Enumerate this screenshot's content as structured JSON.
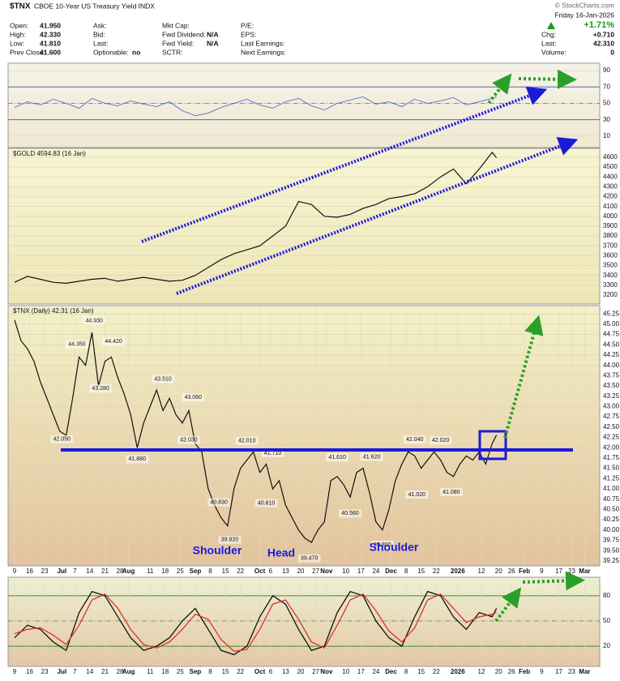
{
  "header": {
    "symbol": "$TNX",
    "name": "CBOE 10-Year US Treasury Yield INDX",
    "credit": "© StockCharts.com",
    "date": "Friday 16-Jan-2026",
    "change": "+1.71%",
    "columns": [
      [
        {
          "label": "Open:",
          "value": "41.950"
        },
        {
          "label": "High:",
          "value": "42.330"
        },
        {
          "label": "Low:",
          "value": "41.810"
        },
        {
          "label": "Prev Close:",
          "value": "41.600"
        }
      ],
      [
        {
          "label": "Ask:"
        },
        {
          "label": "Bid:"
        },
        {
          "label": "Last:"
        },
        {
          "label": "Optionable:",
          "value": "no"
        }
      ],
      [
        {
          "label": "Mkt Cap:"
        },
        {
          "label": "Fwd Dividend:",
          "value": "N/A"
        },
        {
          "label": "Fwd Yield:",
          "value": "N/A"
        },
        {
          "label": "SCTR:"
        }
      ],
      [
        {
          "label": "P/E:"
        },
        {
          "label": "EPS:"
        },
        {
          "label": "Last Earnings:"
        },
        {
          "label": "Next Earnings:"
        }
      ]
    ],
    "right": [
      {
        "label": "Chg:",
        "value": "+0.710"
      },
      {
        "label": "Last:",
        "value": "42.310"
      },
      {
        "label": "Volume:",
        "value": "0"
      }
    ]
  },
  "pattern_labels": [
    "Shoulder",
    "Head",
    "Shoulder"
  ],
  "chart_data": [
    {
      "type": "line",
      "color": "#3a5fcd",
      "ylim": [
        -4,
        99
      ],
      "yticks": [
        10,
        30,
        50,
        70,
        90
      ],
      "xlim": [
        -3,
        272
      ],
      "x": [
        0,
        6,
        12,
        18,
        24,
        30,
        36,
        42,
        48,
        54,
        60,
        66,
        72,
        78,
        84,
        90,
        96,
        102,
        108,
        114,
        120,
        126,
        132,
        138,
        144,
        150,
        156,
        162,
        168,
        174,
        180,
        186,
        192,
        198,
        204,
        210,
        216,
        222,
        224
      ],
      "values": [
        45,
        52,
        48,
        55,
        50,
        44,
        56,
        50,
        47,
        53,
        49,
        46,
        52,
        41,
        35,
        38,
        45,
        50,
        55,
        48,
        44,
        52,
        56,
        47,
        42,
        50,
        54,
        58,
        49,
        52,
        46,
        55,
        50,
        53,
        57,
        48,
        52,
        56,
        58
      ]
    },
    {
      "type": "line",
      "title": "$GOLD 4594.83 (16 Jan)",
      "color": "#111111",
      "ylim": [
        3109,
        4690
      ],
      "xlim": [
        -3,
        272
      ],
      "yticks": [
        3200,
        3300,
        3400,
        3500,
        3600,
        3700,
        3800,
        3900,
        4000,
        4100,
        4200,
        4300,
        4400,
        4500,
        4600
      ],
      "x": [
        0,
        6,
        12,
        18,
        24,
        30,
        36,
        42,
        48,
        54,
        60,
        66,
        72,
        78,
        84,
        90,
        96,
        102,
        108,
        114,
        120,
        126,
        132,
        138,
        144,
        150,
        156,
        162,
        168,
        174,
        180,
        186,
        192,
        198,
        204,
        210,
        216,
        222,
        224
      ],
      "values": [
        3330,
        3390,
        3360,
        3330,
        3320,
        3340,
        3360,
        3370,
        3340,
        3360,
        3380,
        3360,
        3340,
        3350,
        3400,
        3480,
        3560,
        3620,
        3660,
        3700,
        3800,
        3900,
        4150,
        4120,
        4000,
        3990,
        4020,
        4080,
        4120,
        4180,
        4200,
        4230,
        4300,
        4400,
        4480,
        4330,
        4480,
        4650,
        4594.83
      ]
    },
    {
      "type": "line",
      "title": "$TNX (Daily) 42.31 (16 Jan)",
      "color": "#111111",
      "ylim": [
        39.13,
        45.45
      ],
      "xlim": [
        -3,
        272
      ],
      "yticks": [
        39.25,
        {
          "value": 39.5,
          "label": "39.50"
        },
        39.75,
        {
          "value": 40,
          "label": "40.00"
        },
        40.25,
        {
          "value": 40.5,
          "label": "40.50"
        },
        40.75,
        {
          "value": 41,
          "label": "41.00"
        },
        41.25,
        {
          "value": 41.5,
          "label": "41.50"
        },
        41.75,
        {
          "value": 42,
          "label": "42.00"
        },
        42.25,
        {
          "value": 42.5,
          "label": "42.50"
        },
        42.75,
        {
          "value": 43,
          "label": "43.00"
        },
        43.25,
        {
          "value": 43.5,
          "label": "43.50"
        },
        43.75,
        {
          "value": 44,
          "label": "44.00"
        },
        44.25,
        {
          "value": 44.5,
          "label": "44.50"
        },
        44.75,
        {
          "value": 45,
          "label": "45.00"
        },
        45.25
      ],
      "xticks": [
        {
          "value": 0,
          "label": "9"
        },
        {
          "value": 7,
          "label": "16"
        },
        {
          "value": 14,
          "label": "23"
        },
        {
          "value": 22,
          "label": "Jul"
        },
        {
          "value": 28,
          "label": "7"
        },
        {
          "value": 35,
          "label": "14"
        },
        {
          "value": 42,
          "label": "21"
        },
        {
          "value": 49,
          "label": "28"
        },
        {
          "value": 53,
          "label": "Aug"
        },
        {
          "value": 63,
          "label": "11"
        },
        {
          "value": 70,
          "label": "18"
        },
        {
          "value": 77,
          "label": "25"
        },
        {
          "value": 84,
          "label": "Sep"
        },
        {
          "value": 91,
          "label": "8"
        },
        {
          "value": 98,
          "label": "15"
        },
        {
          "value": 105,
          "label": "22"
        },
        {
          "value": 114,
          "label": "Oct"
        },
        {
          "value": 119,
          "label": "6"
        },
        {
          "value": 126,
          "label": "13"
        },
        {
          "value": 133,
          "label": "20"
        },
        {
          "value": 140,
          "label": "27"
        },
        {
          "value": 145,
          "label": "Nov"
        },
        {
          "value": 154,
          "label": "10"
        },
        {
          "value": 161,
          "label": "17"
        },
        {
          "value": 168,
          "label": "24"
        },
        {
          "value": 175,
          "label": "Dec"
        },
        {
          "value": 182,
          "label": "8"
        },
        {
          "value": 189,
          "label": "15"
        },
        {
          "value": 196,
          "label": "22"
        },
        {
          "value": 206,
          "label": "2026"
        },
        {
          "value": 217,
          "label": "12"
        },
        {
          "value": 225,
          "label": "20"
        },
        {
          "value": 231,
          "label": "26"
        },
        {
          "value": 237,
          "label": "Feb"
        },
        {
          "value": 245,
          "label": "9"
        },
        {
          "value": 253,
          "label": "17"
        },
        {
          "value": 259,
          "label": "23"
        },
        {
          "value": 265,
          "label": "Mar"
        }
      ],
      "x": [
        0,
        3,
        6,
        9,
        12,
        15,
        18,
        21,
        24,
        27,
        30,
        33,
        36,
        39,
        42,
        45,
        48,
        51,
        54,
        57,
        60,
        63,
        66,
        69,
        72,
        75,
        78,
        81,
        84,
        87,
        90,
        93,
        96,
        99,
        102,
        105,
        108,
        111,
        114,
        117,
        120,
        123,
        126,
        129,
        132,
        135,
        138,
        141,
        144,
        147,
        150,
        153,
        156,
        159,
        162,
        165,
        168,
        171,
        174,
        177,
        180,
        183,
        186,
        189,
        192,
        195,
        198,
        201,
        204,
        207,
        210,
        213,
        216,
        219,
        222,
        224
      ],
      "values": [
        45.1,
        44.6,
        44.4,
        44.1,
        43.6,
        43.2,
        42.8,
        42.4,
        42.3,
        43.2,
        44.2,
        44.0,
        44.8,
        43.5,
        44.1,
        44.2,
        43.7,
        43.3,
        42.8,
        42.0,
        42.6,
        43.0,
        43.4,
        42.9,
        43.2,
        42.8,
        42.6,
        42.9,
        42.1,
        41.9,
        41.0,
        40.6,
        40.3,
        40.1,
        41.0,
        41.5,
        41.7,
        41.9,
        41.4,
        41.6,
        41.0,
        41.2,
        40.6,
        40.3,
        40.0,
        39.8,
        39.7,
        40.0,
        40.2,
        41.2,
        41.3,
        41.1,
        40.8,
        41.4,
        41.5,
        40.9,
        40.2,
        40.0,
        40.5,
        41.2,
        41.6,
        41.9,
        41.8,
        41.5,
        41.7,
        41.9,
        41.7,
        41.4,
        41.3,
        41.6,
        41.8,
        41.7,
        41.9,
        41.6,
        42.1,
        42.31
      ],
      "annotations": [
        {
          "x": 22,
          "value": 42.05,
          "label": "42.050"
        },
        {
          "x": 29,
          "value": 44.35,
          "label": "44.350"
        },
        {
          "x": 37,
          "value": 44.93,
          "label": "44.930"
        },
        {
          "x": 40,
          "value": 43.28,
          "label": "43.280"
        },
        {
          "x": 46,
          "value": 44.42,
          "label": "44.420"
        },
        {
          "x": 57,
          "value": 41.88,
          "label": "41.880"
        },
        {
          "x": 69,
          "value": 43.51,
          "label": "43.510"
        },
        {
          "x": 83,
          "value": 43.06,
          "label": "43.060"
        },
        {
          "x": 81,
          "value": 42.03,
          "label": "42.030"
        },
        {
          "x": 95,
          "value": 40.83,
          "label": "40.830"
        },
        {
          "x": 100,
          "value": 39.92,
          "label": "39.920"
        },
        {
          "x": 108,
          "value": 42.01,
          "label": "42.010"
        },
        {
          "x": 120,
          "value": 41.71,
          "label": "41.710"
        },
        {
          "x": 117,
          "value": 40.81,
          "label": "40.810"
        },
        {
          "x": 137,
          "value": 39.47,
          "label": "39.470"
        },
        {
          "x": 150,
          "value": 41.61,
          "label": "41.610"
        },
        {
          "x": 156,
          "value": 40.56,
          "label": "40.560"
        },
        {
          "x": 166,
          "value": 41.62,
          "label": "41.620"
        },
        {
          "x": 171,
          "value": 39.8,
          "label": "39.800"
        },
        {
          "x": 186,
          "value": 42.04,
          "label": "42.040"
        },
        {
          "x": 187,
          "value": 41.02,
          "label": "41.020"
        },
        {
          "x": 198,
          "value": 42.02,
          "label": "42.020"
        },
        {
          "x": 203,
          "value": 41.08,
          "label": "41.080"
        }
      ]
    },
    {
      "type": "line",
      "ylim": [
        -4,
        102
      ],
      "yticks": [
        20,
        50,
        80
      ],
      "xlim": [
        -3,
        272
      ],
      "xticks": [
        {
          "value": 0,
          "label": "9"
        },
        {
          "value": 7,
          "label": "16"
        },
        {
          "value": 14,
          "label": "23"
        },
        {
          "value": 22,
          "label": "Jul"
        },
        {
          "value": 28,
          "label": "7"
        },
        {
          "value": 35,
          "label": "14"
        },
        {
          "value": 42,
          "label": "21"
        },
        {
          "value": 49,
          "label": "28"
        },
        {
          "value": 53,
          "label": "Aug"
        },
        {
          "value": 63,
          "label": "11"
        },
        {
          "value": 70,
          "label": "18"
        },
        {
          "value": 77,
          "label": "25"
        },
        {
          "value": 84,
          "label": "Sep"
        },
        {
          "value": 91,
          "label": "8"
        },
        {
          "value": 98,
          "label": "15"
        },
        {
          "value": 105,
          "label": "22"
        },
        {
          "value": 114,
          "label": "Oct"
        },
        {
          "value": 119,
          "label": "6"
        },
        {
          "value": 126,
          "label": "13"
        },
        {
          "value": 133,
          "label": "20"
        },
        {
          "value": 140,
          "label": "27"
        },
        {
          "value": 145,
          "label": "Nov"
        },
        {
          "value": 154,
          "label": "10"
        },
        {
          "value": 161,
          "label": "17"
        },
        {
          "value": 168,
          "label": "24"
        },
        {
          "value": 175,
          "label": "Dec"
        },
        {
          "value": 182,
          "label": "8"
        },
        {
          "value": 189,
          "label": "15"
        },
        {
          "value": 196,
          "label": "22"
        },
        {
          "value": 206,
          "label": "2026"
        },
        {
          "value": 217,
          "label": "12"
        },
        {
          "value": 225,
          "label": "20"
        },
        {
          "value": 231,
          "label": "26"
        },
        {
          "value": 237,
          "label": "Feb"
        },
        {
          "value": 245,
          "label": "9"
        },
        {
          "value": 253,
          "label": "17"
        },
        {
          "value": 259,
          "label": "23"
        },
        {
          "value": 265,
          "label": "Mar"
        }
      ],
      "x": [
        0,
        6,
        12,
        18,
        24,
        30,
        36,
        42,
        48,
        54,
        60,
        66,
        72,
        78,
        84,
        90,
        96,
        102,
        108,
        114,
        120,
        126,
        132,
        138,
        144,
        150,
        156,
        162,
        168,
        174,
        180,
        186,
        192,
        198,
        204,
        210,
        216,
        222,
        224
      ],
      "series": [
        {
          "color": "#111111",
          "values": [
            30,
            45,
            40,
            25,
            15,
            60,
            85,
            80,
            55,
            30,
            15,
            20,
            30,
            50,
            65,
            40,
            15,
            10,
            20,
            55,
            80,
            70,
            40,
            15,
            20,
            60,
            85,
            80,
            50,
            30,
            20,
            55,
            85,
            80,
            55,
            40,
            60,
            55,
            65
          ]
        },
        {
          "color": "#e03030",
          "values": [
            35,
            40,
            42,
            33,
            22,
            45,
            75,
            82,
            65,
            40,
            22,
            18,
            25,
            40,
            58,
            52,
            28,
            14,
            16,
            40,
            70,
            75,
            52,
            25,
            18,
            45,
            75,
            82,
            62,
            38,
            25,
            42,
            75,
            82,
            65,
            48,
            55,
            58,
            60
          ]
        }
      ]
    }
  ]
}
